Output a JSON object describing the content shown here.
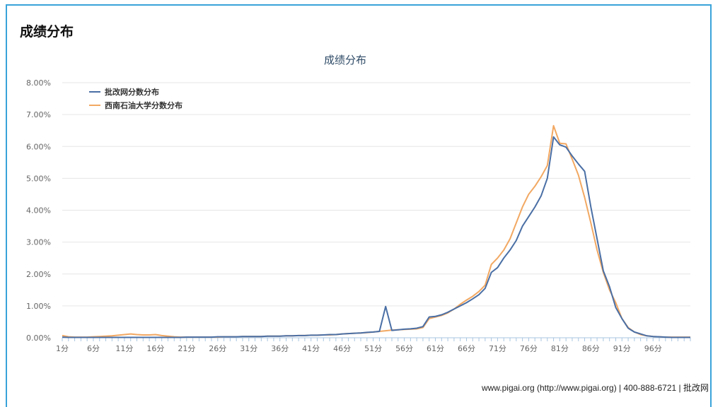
{
  "section": {
    "title": "成绩分布"
  },
  "footer": {
    "text": "www.pigai.org (http://www.pigai.org) | 400-888-6721 | 批改网"
  },
  "colors": {
    "frame": "#3aa3d9",
    "series1": "#4a6fa5",
    "series2": "#f2a862",
    "grid": "#e6e6e6",
    "axis": "#a8c6e0"
  },
  "chart_data": {
    "type": "line",
    "title": "成绩分布",
    "xlabel": "",
    "ylabel": "",
    "ylim": [
      0,
      8
    ],
    "y_unit": "%",
    "y_ticks": [
      "0.00%",
      "1.00%",
      "2.00%",
      "3.00%",
      "4.00%",
      "5.00%",
      "6.00%",
      "7.00%",
      "8.00%"
    ],
    "x_tick_labels": [
      "1分",
      "6分",
      "11分",
      "16分",
      "21分",
      "26分",
      "31分",
      "36分",
      "41分",
      "46分",
      "51分",
      "56分",
      "61分",
      "66分",
      "71分",
      "76分",
      "81分",
      "86分",
      "91分",
      "96分"
    ],
    "x_tick_positions": [
      1,
      6,
      11,
      16,
      21,
      26,
      31,
      36,
      41,
      46,
      51,
      56,
      61,
      66,
      71,
      76,
      81,
      86,
      91,
      96
    ],
    "x": [
      1,
      2,
      3,
      4,
      5,
      6,
      7,
      8,
      9,
      10,
      11,
      12,
      13,
      14,
      15,
      16,
      17,
      18,
      19,
      20,
      21,
      22,
      23,
      24,
      25,
      26,
      27,
      28,
      29,
      30,
      31,
      32,
      33,
      34,
      35,
      36,
      37,
      38,
      39,
      40,
      41,
      42,
      43,
      44,
      45,
      46,
      47,
      48,
      49,
      50,
      51,
      52,
      53,
      54,
      55,
      56,
      57,
      58,
      59,
      60,
      61,
      62,
      63,
      64,
      65,
      66,
      67,
      68,
      69,
      70,
      71,
      72,
      73,
      74,
      75,
      76,
      77,
      78,
      79,
      80,
      81,
      82,
      83,
      84,
      85,
      86,
      87,
      88,
      89,
      90,
      91,
      92,
      93,
      94,
      95,
      96,
      97,
      98,
      99,
      100,
      101,
      102
    ],
    "grid": true,
    "legend": "top-left",
    "series": [
      {
        "name": "批改网分数分布",
        "values": [
          0.02,
          0.01,
          0.01,
          0.01,
          0.01,
          0.01,
          0.01,
          0.01,
          0.01,
          0.01,
          0.01,
          0.01,
          0.01,
          0.01,
          0.01,
          0.01,
          0.01,
          0.01,
          0.01,
          0.01,
          0.02,
          0.02,
          0.02,
          0.02,
          0.02,
          0.03,
          0.03,
          0.03,
          0.03,
          0.04,
          0.04,
          0.04,
          0.04,
          0.05,
          0.05,
          0.05,
          0.06,
          0.06,
          0.07,
          0.07,
          0.08,
          0.08,
          0.09,
          0.1,
          0.1,
          0.12,
          0.13,
          0.14,
          0.15,
          0.17,
          0.18,
          0.2,
          0.98,
          0.23,
          0.25,
          0.27,
          0.28,
          0.3,
          0.35,
          0.65,
          0.67,
          0.72,
          0.8,
          0.9,
          1.0,
          1.1,
          1.22,
          1.35,
          1.55,
          2.05,
          2.2,
          2.5,
          2.75,
          3.05,
          3.5,
          3.8,
          4.1,
          4.45,
          5.0,
          6.3,
          6.05,
          5.98,
          5.7,
          5.45,
          5.22,
          4.1,
          3.1,
          2.1,
          1.6,
          0.95,
          0.6,
          0.3,
          0.18,
          0.12,
          0.06,
          0.04,
          0.03,
          0.02,
          0.01,
          0.01,
          0.01,
          0.01
        ]
      },
      {
        "name": "西南石油大学分数分布",
        "values": [
          0.07,
          0.03,
          0.02,
          0.02,
          0.02,
          0.03,
          0.04,
          0.05,
          0.06,
          0.08,
          0.1,
          0.12,
          0.1,
          0.09,
          0.09,
          0.1,
          0.07,
          0.05,
          0.03,
          0.02,
          0.02,
          0.02,
          0.02,
          0.02,
          0.02,
          0.02,
          0.03,
          0.03,
          0.03,
          0.04,
          0.04,
          0.04,
          0.04,
          0.05,
          0.05,
          0.05,
          0.06,
          0.06,
          0.07,
          0.07,
          0.08,
          0.08,
          0.09,
          0.09,
          0.1,
          0.12,
          0.13,
          0.14,
          0.15,
          0.16,
          0.18,
          0.2,
          0.22,
          0.24,
          0.25,
          0.26,
          0.27,
          0.28,
          0.32,
          0.6,
          0.65,
          0.7,
          0.78,
          0.9,
          1.05,
          1.18,
          1.3,
          1.45,
          1.65,
          2.3,
          2.5,
          2.75,
          3.1,
          3.6,
          4.1,
          4.5,
          4.75,
          5.05,
          5.4,
          6.65,
          6.1,
          6.08,
          5.6,
          5.1,
          4.4,
          3.6,
          2.75,
          2.05,
          1.5,
          1.1,
          0.6,
          0.32,
          0.18,
          0.1,
          0.06,
          0.04,
          0.03,
          0.02,
          0.02,
          0.02,
          0.02,
          0.02
        ]
      }
    ]
  }
}
